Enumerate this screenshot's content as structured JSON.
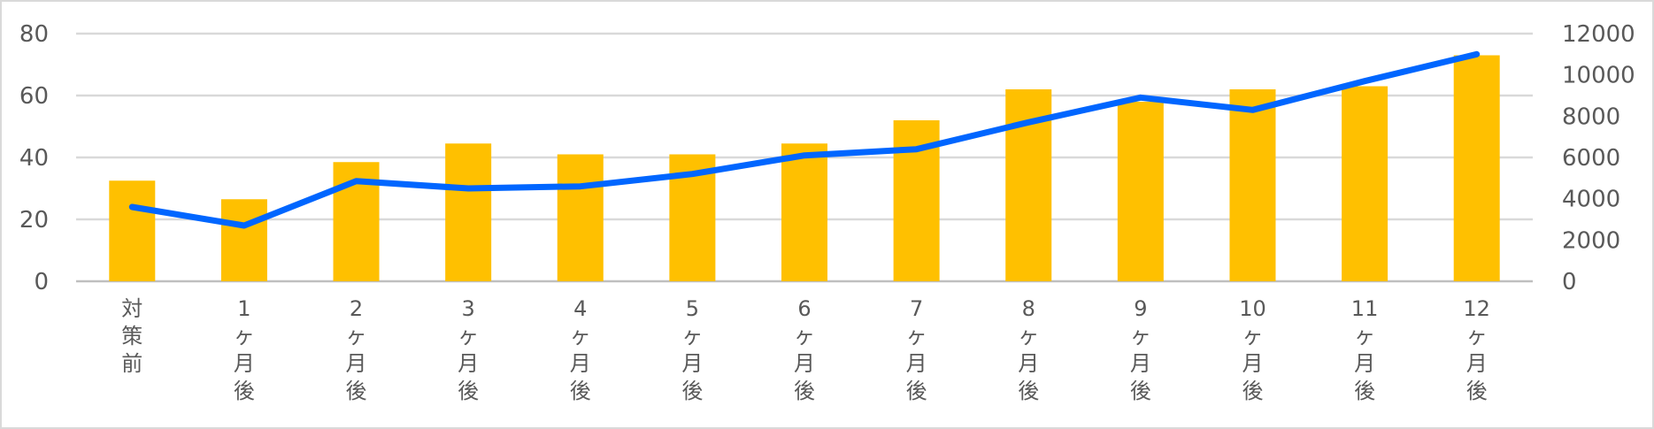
{
  "chart_data": {
    "type": "bar",
    "categories": [
      "対策前",
      "1ヶ月後",
      "2ヶ月後",
      "3ヶ月後",
      "4ヶ月後",
      "5ヶ月後",
      "6ヶ月後",
      "7ヶ月後",
      "8ヶ月後",
      "9ヶ月後",
      "10ヶ月後",
      "11ヶ月後",
      "12ヶ月後"
    ],
    "series": [
      {
        "chart": "bar",
        "axis": "left",
        "color": "#FFC000",
        "values": [
          32.5,
          26.5,
          38.5,
          44.5,
          41,
          41,
          44.5,
          52,
          62,
          58,
          62,
          63,
          73
        ]
      },
      {
        "chart": "line",
        "axis": "right",
        "color": "#0066FF",
        "values": [
          3600,
          2700,
          4850,
          4500,
          4600,
          5200,
          6100,
          6400,
          7700,
          8900,
          8300,
          9700,
          11000
        ]
      }
    ],
    "left_axis": {
      "ylim": [
        0,
        80
      ],
      "ticks": [
        0,
        20,
        40,
        60,
        80
      ]
    },
    "right_axis": {
      "ylim": [
        0,
        12000
      ],
      "ticks": [
        0,
        2000,
        4000,
        6000,
        8000,
        10000,
        12000
      ]
    },
    "grid": true,
    "legend": "none",
    "title": "",
    "xlabel": "",
    "ylabel": ""
  }
}
